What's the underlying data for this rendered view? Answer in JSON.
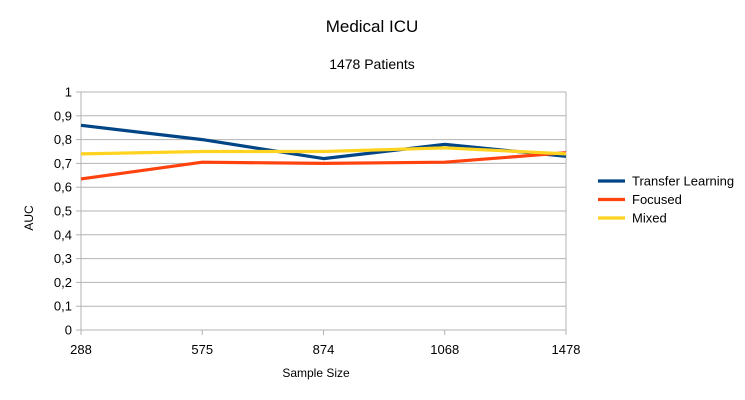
{
  "chart_data": {
    "type": "line",
    "title": "Medical ICU",
    "subtitle": "1478 Patients",
    "xlabel": "Sample Size",
    "ylabel": "AUC",
    "categories": [
      "288",
      "575",
      "874",
      "1068",
      "1478"
    ],
    "yticks": [
      "0",
      "0,1",
      "0,2",
      "0,3",
      "0,4",
      "0,5",
      "0,6",
      "0,7",
      "0,8",
      "0,9",
      "1"
    ],
    "ylim": [
      0,
      1
    ],
    "grid": true,
    "legend_position": "right",
    "series": [
      {
        "name": "Transfer Learning",
        "color": "#004586",
        "values": [
          0.86,
          0.8,
          0.72,
          0.78,
          0.73
        ]
      },
      {
        "name": "Focused",
        "color": "#ff420e",
        "values": [
          0.635,
          0.705,
          0.7,
          0.705,
          0.745
        ]
      },
      {
        "name": "Mixed",
        "color": "#ffd320",
        "values": [
          0.74,
          0.75,
          0.75,
          0.765,
          0.74
        ]
      }
    ]
  }
}
